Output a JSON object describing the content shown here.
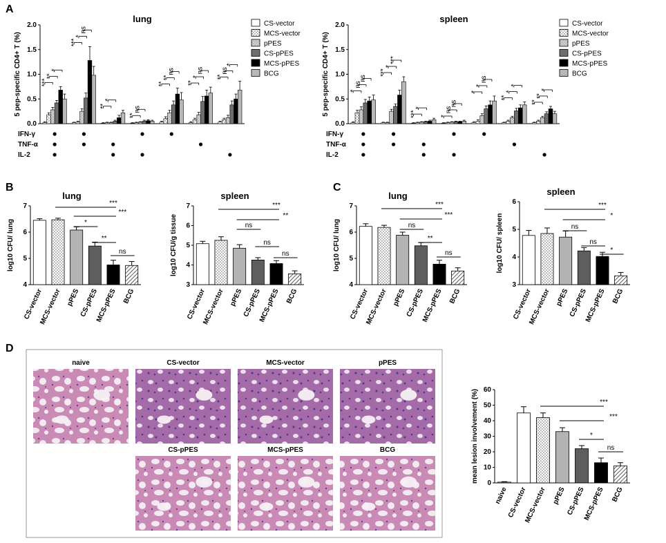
{
  "panel_letters": [
    "A",
    "B",
    "C",
    "D"
  ],
  "legend": {
    "entries": [
      "CS-vector",
      "MCS-vector",
      "pPES",
      "CS-pPES",
      "MCS-pPES",
      "BCG"
    ],
    "colors": [
      "#ffffff",
      "#ffffff",
      "#f2f2f2",
      "#6e6e6e",
      "#000000",
      "#b8b8b8"
    ],
    "patterns": [
      "none",
      "dots",
      "dots",
      "solid",
      "solid",
      "solid"
    ]
  },
  "marker_labels": [
    "IFN-γ",
    "TNF-α",
    "IL-2"
  ],
  "marker_matrix": [
    [
      1,
      1,
      1
    ],
    [
      1,
      1,
      0
    ],
    [
      0,
      1,
      1
    ],
    [
      1,
      0,
      1
    ],
    [
      1,
      0,
      0
    ],
    [
      0,
      1,
      0
    ],
    [
      0,
      0,
      1
    ]
  ],
  "photo_labels": [
    "naive",
    "CS-vector",
    "MCS-vector",
    "pPES",
    "CS-pPES",
    "MCS-pPES",
    "BCG"
  ],
  "chart_data": [
    {
      "id": "A-lung",
      "type": "bar",
      "title": "lung",
      "ylabel": "5 pep-specific CD4+ T (%)",
      "ylim": [
        0,
        2.0
      ],
      "yticks": [
        "0.0",
        "0.5",
        "1.0",
        "1.5",
        "2.0"
      ],
      "ytick_values": [
        0,
        0.5,
        1.0,
        1.5,
        2.0
      ],
      "series_names": [
        "CS-vector",
        "MCS-vector",
        "pPES",
        "CS-pPES",
        "MCS-pPES",
        "BCG"
      ],
      "groups": [
        {
          "values": [
            0.02,
            0.18,
            0.28,
            0.42,
            0.68,
            0.5
          ],
          "errors": [
            0.02,
            0.04,
            0.05,
            0.05,
            0.07,
            0.1
          ],
          "sig": [
            "***",
            "**",
            "*"
          ]
        },
        {
          "values": [
            0.02,
            0.03,
            0.25,
            0.52,
            1.28,
            0.98
          ],
          "errors": [
            0.01,
            0.02,
            0.05,
            0.1,
            0.28,
            0.18
          ],
          "sig": [
            "***",
            "*",
            "ns"
          ]
        },
        {
          "values": [
            0.01,
            0.02,
            0.02,
            0.05,
            0.12,
            0.22
          ],
          "errors": [
            0.01,
            0.01,
            0.01,
            0.02,
            0.05,
            0.05
          ],
          "sig": [
            "**",
            "*"
          ]
        },
        {
          "values": [
            0.01,
            0.02,
            0.03,
            0.05,
            0.06,
            0.05
          ],
          "errors": [
            0.01,
            0.01,
            0.01,
            0.02,
            0.02,
            0.02
          ],
          "sig": [
            "**",
            "ns"
          ]
        },
        {
          "values": [
            0.03,
            0.1,
            0.22,
            0.38,
            0.6,
            0.48
          ],
          "errors": [
            0.02,
            0.04,
            0.05,
            0.08,
            0.12,
            0.15
          ],
          "sig": [
            "**",
            "**",
            "ns"
          ]
        },
        {
          "values": [
            0.02,
            0.08,
            0.18,
            0.45,
            0.56,
            0.62
          ],
          "errors": [
            0.02,
            0.03,
            0.05,
            0.1,
            0.12,
            0.12
          ],
          "sig": [
            "**",
            "*",
            "ns"
          ]
        },
        {
          "values": [
            0.03,
            0.08,
            0.12,
            0.38,
            0.5,
            0.68
          ],
          "errors": [
            0.02,
            0.03,
            0.05,
            0.08,
            0.1,
            0.18
          ],
          "sig": [
            "**",
            "ns",
            "*"
          ]
        }
      ]
    },
    {
      "id": "A-spleen",
      "type": "bar",
      "title": "spleen",
      "ylabel": "5 pep-specific CD4+ T (%)",
      "ylim": [
        0,
        2.0
      ],
      "yticks": [
        "0.0",
        "0.5",
        "1.0",
        "1.5",
        "2.0"
      ],
      "ytick_values": [
        0,
        0.5,
        1.0,
        1.5,
        2.0
      ],
      "series_names": [
        "CS-vector",
        "MCS-vector",
        "pPES",
        "CS-pPES",
        "MCS-pPES",
        "BCG"
      ],
      "groups": [
        {
          "values": [
            0.02,
            0.22,
            0.28,
            0.42,
            0.46,
            0.48
          ],
          "errors": [
            0.02,
            0.05,
            0.06,
            0.07,
            0.08,
            0.1
          ],
          "sig": [
            "*",
            "ns",
            "ns"
          ]
        },
        {
          "values": [
            0.02,
            0.02,
            0.25,
            0.35,
            0.58,
            0.85
          ],
          "errors": [
            0.01,
            0.01,
            0.04,
            0.05,
            0.1,
            0.1
          ],
          "sig": [
            "***",
            "*",
            "***"
          ]
        },
        {
          "values": [
            0.01,
            0.02,
            0.03,
            0.04,
            0.05,
            0.08
          ],
          "errors": [
            0.01,
            0.01,
            0.01,
            0.01,
            0.02,
            0.03
          ],
          "sig": [
            "***",
            "*"
          ]
        },
        {
          "values": [
            0.01,
            0.02,
            0.03,
            0.04,
            0.04,
            0.05
          ],
          "errors": [
            0.01,
            0.01,
            0.01,
            0.01,
            0.01,
            0.02
          ],
          "sig": [
            "*",
            "ns",
            "ns"
          ]
        },
        {
          "values": [
            0.02,
            0.05,
            0.16,
            0.3,
            0.38,
            0.46
          ],
          "errors": [
            0.02,
            0.03,
            0.04,
            0.06,
            0.08,
            0.1
          ],
          "sig": [
            "*",
            "*",
            "ns"
          ]
        },
        {
          "values": [
            0.02,
            0.05,
            0.12,
            0.26,
            0.32,
            0.38
          ],
          "errors": [
            0.01,
            0.02,
            0.03,
            0.05,
            0.06,
            0.06
          ],
          "sig": [
            "**",
            "*",
            "*"
          ]
        },
        {
          "values": [
            0.02,
            0.05,
            0.12,
            0.2,
            0.3,
            0.2
          ],
          "errors": [
            0.01,
            0.02,
            0.03,
            0.04,
            0.05,
            0.05
          ],
          "sig": [
            "**",
            "**",
            "*"
          ]
        }
      ]
    },
    {
      "id": "B-lung",
      "type": "bar",
      "title": "lung",
      "ylabel": "log10 CFU/ lung",
      "ylim": [
        4,
        7
      ],
      "yticks": [
        "4",
        "5",
        "6",
        "7"
      ],
      "ytick_values": [
        4,
        5,
        6,
        7
      ],
      "categories": [
        "CS-vector",
        "MCS-vector",
        "pPES",
        "CS-pPES",
        "MCS-pPES",
        "BCG"
      ],
      "values": [
        6.45,
        6.47,
        6.08,
        5.47,
        4.75,
        4.73
      ],
      "errors": [
        0.06,
        0.06,
        0.12,
        0.15,
        0.18,
        0.15
      ],
      "comparisons": [
        {
          "from": 1,
          "to": 4,
          "label": "***"
        },
        {
          "from": 2,
          "to": 4,
          "label": "***"
        },
        {
          "from": 2,
          "to": 3,
          "label": "*"
        },
        {
          "from": 3,
          "to": 4,
          "label": "**"
        },
        {
          "from": 4,
          "to": 5,
          "label": "ns"
        }
      ]
    },
    {
      "id": "B-spleen",
      "type": "bar",
      "title": "spleen",
      "ylabel": "log10 CFU/g tissue",
      "ylim": [
        3,
        7
      ],
      "yticks": [
        "3",
        "4",
        "5",
        "6",
        "7"
      ],
      "ytick_values": [
        3,
        4,
        5,
        6,
        7
      ],
      "categories": [
        "CS-vector",
        "MCS-vector",
        "pPES",
        "CS-pPES",
        "MCS-pPES",
        "BCG"
      ],
      "values": [
        5.08,
        5.25,
        4.85,
        4.25,
        4.07,
        3.55
      ],
      "errors": [
        0.12,
        0.18,
        0.18,
        0.12,
        0.15,
        0.15
      ],
      "comparisons": [
        {
          "from": 1,
          "to": 4,
          "label": "***"
        },
        {
          "from": 2,
          "to": 4,
          "label": "**"
        },
        {
          "from": 2,
          "to": 3,
          "label": "ns"
        },
        {
          "from": 3,
          "to": 4,
          "label": "ns"
        },
        {
          "from": 4,
          "to": 5,
          "label": "ns"
        }
      ]
    },
    {
      "id": "C-lung",
      "type": "bar",
      "title": "lung",
      "ylabel": "log10 CFU/ lung",
      "ylim": [
        4,
        7
      ],
      "yticks": [
        "4",
        "5",
        "6",
        "7"
      ],
      "ytick_values": [
        4,
        5,
        6,
        7
      ],
      "categories": [
        "CS-vector",
        "MCS-vector",
        "pPES",
        "CS-pPES",
        "MCS-pPES",
        "BCG"
      ],
      "values": [
        6.22,
        6.18,
        5.88,
        5.48,
        4.78,
        4.52
      ],
      "errors": [
        0.1,
        0.08,
        0.12,
        0.12,
        0.15,
        0.12
      ],
      "comparisons": [
        {
          "from": 1,
          "to": 4,
          "label": "***"
        },
        {
          "from": 2,
          "to": 4,
          "label": "***"
        },
        {
          "from": 2,
          "to": 3,
          "label": "ns"
        },
        {
          "from": 3,
          "to": 4,
          "label": "**"
        },
        {
          "from": 4,
          "to": 5,
          "label": "ns"
        }
      ]
    },
    {
      "id": "C-spleen",
      "type": "bar",
      "title": "spleen",
      "ylabel": "log10 CFU/ spleen",
      "ylim": [
        3,
        6
      ],
      "yticks": [
        "3",
        "4",
        "5",
        "6"
      ],
      "ytick_values": [
        3,
        4,
        5,
        6
      ],
      "categories": [
        "CS-vector",
        "MCS-vector",
        "pPES",
        "CS-pPES",
        "MCS-pPES",
        "BCG"
      ],
      "values": [
        4.78,
        4.85,
        4.72,
        4.22,
        4.02,
        3.32
      ],
      "errors": [
        0.18,
        0.2,
        0.22,
        0.12,
        0.15,
        0.12
      ],
      "comparisons": [
        {
          "from": 1,
          "to": 4,
          "label": "***"
        },
        {
          "from": 2,
          "to": 4,
          "label": "*"
        },
        {
          "from": 2,
          "to": 3,
          "label": "ns"
        },
        {
          "from": 3,
          "to": 4,
          "label": "ns"
        },
        {
          "from": 4,
          "to": 5,
          "label": "*"
        }
      ]
    },
    {
      "id": "D-lesion",
      "type": "bar",
      "title": "",
      "ylabel": "mean lesion involvement (%)",
      "ylim": [
        0,
        60
      ],
      "yticks": [
        "0",
        "10",
        "20",
        "30",
        "40",
        "50",
        "60"
      ],
      "ytick_values": [
        0,
        10,
        20,
        30,
        40,
        50,
        60
      ],
      "categories": [
        "naive",
        "CS-vector",
        "MCS-vector",
        "pPES",
        "CS-pPES",
        "MCS-pPES",
        "BCG"
      ],
      "values": [
        0.5,
        45,
        42,
        33,
        22,
        13,
        11
      ],
      "errors": [
        0.3,
        4,
        3,
        2.5,
        2,
        3,
        2
      ],
      "comparisons": [
        {
          "from": 2,
          "to": 5,
          "label": "***"
        },
        {
          "from": 3,
          "to": 5,
          "label": "***"
        },
        {
          "from": 4,
          "to": 5,
          "label": "*"
        },
        {
          "from": 5,
          "to": 6,
          "label": "ns"
        }
      ]
    }
  ]
}
